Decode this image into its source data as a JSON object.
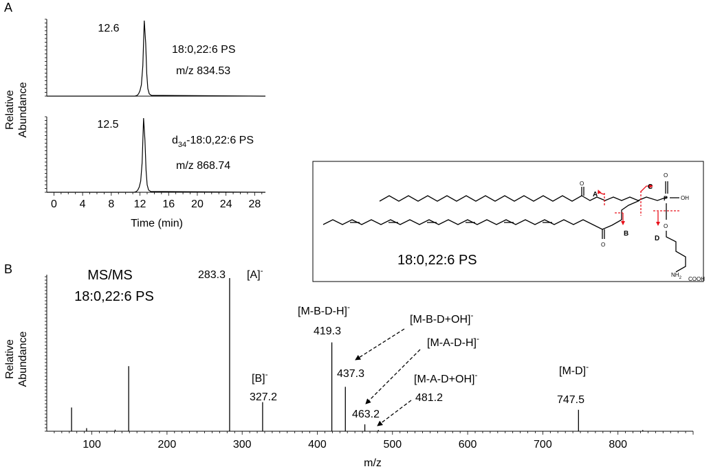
{
  "figure": {
    "panel_a_label": "A",
    "panel_b_label": "B",
    "structure_name": "18:0,22:6 PS",
    "structure_labels": {
      "a": "A",
      "b": "B",
      "c": "C",
      "d": "D",
      "carbonyl_o": "O",
      "ester_o": "O",
      "phosphoryl_o": "O",
      "p": "P",
      "oh": "OH",
      "serine_o": "O",
      "cooh": "COOH",
      "nh2": "NH",
      "nh2_sub": "2"
    }
  },
  "chart_data": [
    {
      "type": "line",
      "panel": "A",
      "ylabel": [
        "Relative",
        "Abundance"
      ],
      "xlabel": "Time (min)",
      "xlim": [
        -1,
        29.5
      ],
      "xticks": [
        0,
        4,
        8,
        12,
        16,
        20,
        24,
        28
      ],
      "traces": [
        {
          "apex_label": "12.6",
          "name": "18:0,22:6 PS",
          "mz": "m/z 834.53",
          "x": [
            -1,
            11.3,
            11.6,
            11.8,
            12.0,
            12.2,
            12.4,
            12.6,
            12.8,
            12.95,
            13.1,
            13.3,
            13.6,
            29.5
          ],
          "y": [
            0,
            0,
            0.01,
            0.03,
            0.07,
            0.15,
            0.4,
            1.0,
            0.7,
            0.3,
            0.1,
            0.03,
            0.01,
            0
          ]
        },
        {
          "apex_label": "12.5",
          "name_prefix": "d",
          "name_sub": "34",
          "name_rest": "-18:0,22:6 PS",
          "mz": "m/z 868.74",
          "x": [
            -1,
            11.2,
            11.5,
            11.7,
            11.9,
            12.1,
            12.3,
            12.5,
            12.7,
            12.85,
            13.0,
            13.2,
            13.5,
            29.5
          ],
          "y": [
            0,
            0,
            0.01,
            0.03,
            0.07,
            0.15,
            0.4,
            1.0,
            0.7,
            0.3,
            0.1,
            0.03,
            0.01,
            0
          ]
        }
      ]
    },
    {
      "type": "bar",
      "panel": "B",
      "title": [
        "MS/MS",
        "18:0,22:6 PS"
      ],
      "ylabel": [
        "Relative",
        "Abundance"
      ],
      "xlabel": "m/z",
      "xlim": [
        40,
        900
      ],
      "ylim": [
        0,
        1.0
      ],
      "xticks": [
        100,
        200,
        300,
        400,
        500,
        600,
        700,
        800
      ],
      "peaks": [
        {
          "mz": 73,
          "intensity": 0.155
        },
        {
          "mz": 93,
          "intensity": 0.02
        },
        {
          "mz": 131,
          "intensity": 0.01
        },
        {
          "mz": 149,
          "intensity": 0.425
        },
        {
          "mz": 283.3,
          "intensity": 1.0
        },
        {
          "mz": 327.2,
          "intensity": 0.19
        },
        {
          "mz": 419.3,
          "intensity": 0.58
        },
        {
          "mz": 437.3,
          "intensity": 0.29
        },
        {
          "mz": 463.2,
          "intensity": 0.045
        },
        {
          "mz": 481.2,
          "intensity": 0.008
        },
        {
          "mz": 747.5,
          "intensity": 0.14
        },
        {
          "mz": 833,
          "intensity": 0.008
        }
      ],
      "annotations": [
        {
          "ion": "[A]",
          "charge": "-",
          "value": "283.3"
        },
        {
          "ion": "[B]",
          "charge": "-",
          "value": "327.2"
        },
        {
          "ion": "[M-B-D-H]",
          "charge": "-",
          "value": "419.3"
        },
        {
          "ion": "[M-B-D+OH]",
          "charge": "-",
          "value": "437.3"
        },
        {
          "ion": "[M-A-D-H]",
          "charge": "-",
          "value": "463.2"
        },
        {
          "ion": "[M-A-D+OH]",
          "charge": "-",
          "value": "481.2"
        },
        {
          "ion": "[M-D]",
          "charge": "-",
          "value": "747.5"
        }
      ]
    }
  ]
}
